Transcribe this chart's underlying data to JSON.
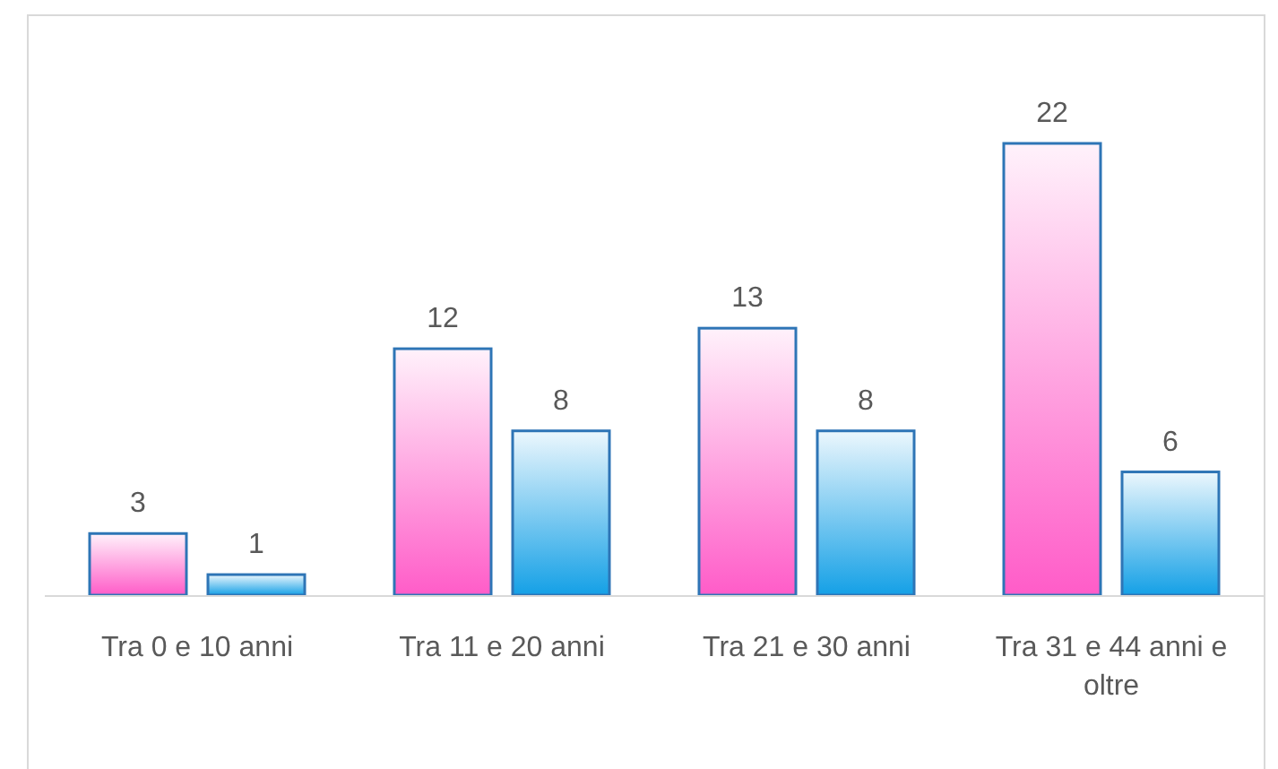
{
  "chart_data": {
    "type": "bar",
    "categories": [
      "Tra 0 e 10 anni",
      "Tra 11 e 20 anni",
      "Tra 21 e 30 anni",
      "Tra 31 e 44 anni e oltre"
    ],
    "series": [
      {
        "color": "#ff5cc8",
        "values": [
          3,
          12,
          13,
          22
        ]
      },
      {
        "color": "#14a0e6",
        "values": [
          1,
          8,
          8,
          6
        ]
      }
    ],
    "data_labels": true
  }
}
